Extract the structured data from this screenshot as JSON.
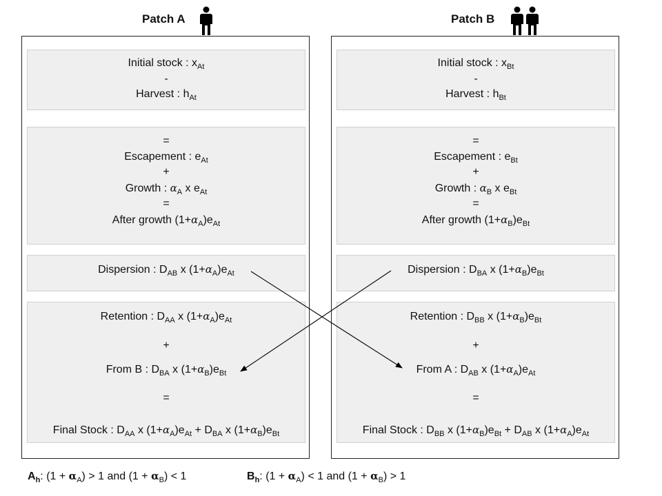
{
  "patch_a": {
    "title": "Patch A",
    "icon": "person-icon",
    "sym": "α",
    "box1": [
      "Initial stock : x",
      "At",
      "-",
      "Harvest : h",
      "At"
    ],
    "escapement": "Escapement : e",
    "growth": "Growth : ",
    "after_growth": "After growth (1+",
    "dispersion": "Dispersion : D",
    "retention": "Retention : D",
    "from": "From B : D",
    "final": "Final Stock : D"
  },
  "patch_b": {
    "title": "Patch B",
    "icon": "two-persons-icon",
    "sym": "α",
    "escapement": "Escapement : e",
    "growth": "Growth : ",
    "after_growth": "After growth (1+",
    "dispersion": "Dispersion : D",
    "retention": "Retention : D",
    "from": "From A : D",
    "final": "Final Stock : D"
  },
  "ops": {
    "equals": "=",
    "plus": "+",
    "minus": "-",
    "times": " x "
  },
  "footer": {
    "a_label": "A",
    "a_sub": "h",
    "b_label": "B",
    "b_sub": "h",
    "gt": "> 1",
    "lt": "< 1",
    "and": "and"
  }
}
